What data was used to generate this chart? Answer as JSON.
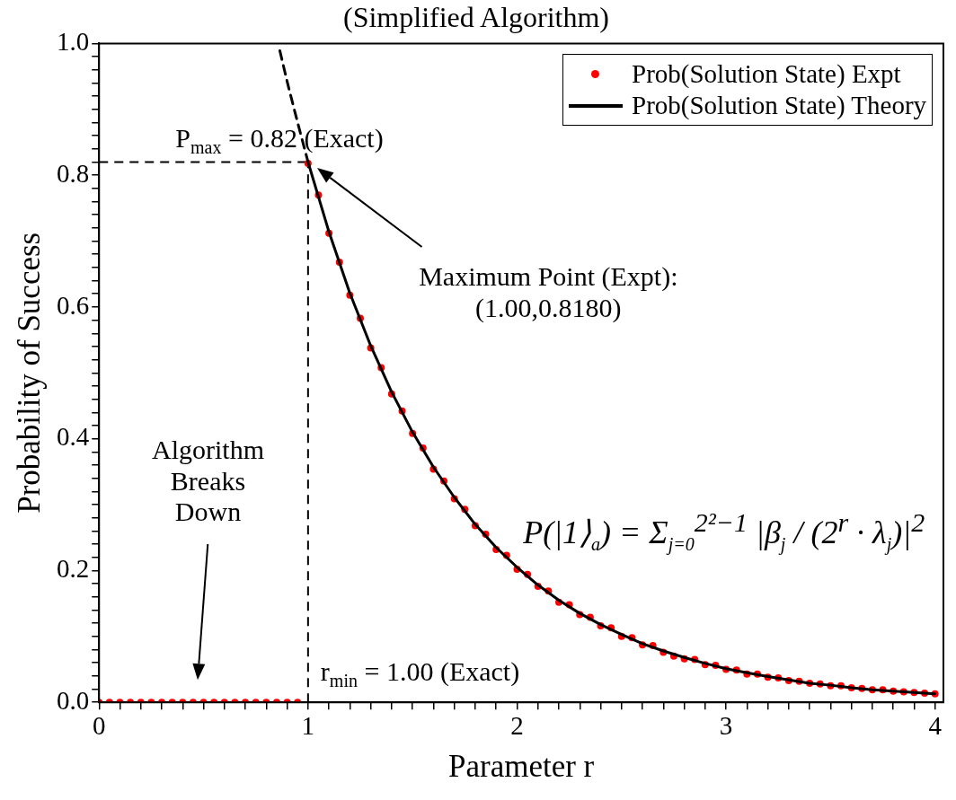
{
  "chart_data": {
    "type": "scatter",
    "title": "(Simplified Algorithm)",
    "xlabel": "Parameter r",
    "ylabel": "Probability of Success",
    "xlim": [
      0,
      4.04
    ],
    "ylim": [
      0,
      1
    ],
    "xticks": [
      0,
      {
        "value": 0.1,
        "label": null
      },
      {
        "value": 0.2,
        "label": null
      },
      {
        "value": 0.3,
        "label": null
      },
      {
        "value": 0.4,
        "label": null
      },
      {
        "value": 0.5,
        "label": null
      },
      {
        "value": 0.6,
        "label": null
      },
      {
        "value": 0.7,
        "label": null
      },
      {
        "value": 0.8,
        "label": null
      },
      {
        "value": 0.9,
        "label": null
      },
      1,
      {
        "value": 1.1,
        "label": null
      },
      {
        "value": 1.2,
        "label": null
      },
      {
        "value": 1.3,
        "label": null
      },
      {
        "value": 1.4,
        "label": null
      },
      {
        "value": 1.5,
        "label": null
      },
      {
        "value": 1.6,
        "label": null
      },
      {
        "value": 1.7,
        "label": null
      },
      {
        "value": 1.8,
        "label": null
      },
      {
        "value": 1.9,
        "label": null
      },
      2,
      {
        "value": 2.1,
        "label": null
      },
      {
        "value": 2.2,
        "label": null
      },
      {
        "value": 2.3,
        "label": null
      },
      {
        "value": 2.4,
        "label": null
      },
      {
        "value": 2.5,
        "label": null
      },
      {
        "value": 2.6,
        "label": null
      },
      {
        "value": 2.7,
        "label": null
      },
      {
        "value": 2.8,
        "label": null
      },
      {
        "value": 2.9,
        "label": null
      },
      3,
      {
        "value": 3.1,
        "label": null
      },
      {
        "value": 3.2,
        "label": null
      },
      {
        "value": 3.3,
        "label": null
      },
      {
        "value": 3.4,
        "label": null
      },
      {
        "value": 3.5,
        "label": null
      },
      {
        "value": 3.6,
        "label": null
      },
      {
        "value": 3.7,
        "label": null
      },
      {
        "value": 3.8,
        "label": null
      },
      {
        "value": 3.9,
        "label": null
      },
      4
    ],
    "yticks": [
      {
        "value": 0,
        "label": "0.0"
      },
      {
        "value": 0.02,
        "label": null
      },
      {
        "value": 0.04,
        "label": null
      },
      {
        "value": 0.06,
        "label": null
      },
      {
        "value": 0.08,
        "label": null
      },
      {
        "value": 0.1,
        "label": null
      },
      {
        "value": 0.12,
        "label": null
      },
      {
        "value": 0.14,
        "label": null
      },
      {
        "value": 0.16,
        "label": null
      },
      {
        "value": 0.18,
        "label": null
      },
      0.2,
      {
        "value": 0.22,
        "label": null
      },
      {
        "value": 0.24,
        "label": null
      },
      {
        "value": 0.26,
        "label": null
      },
      {
        "value": 0.28,
        "label": null
      },
      {
        "value": 0.3,
        "label": null
      },
      {
        "value": 0.32,
        "label": null
      },
      {
        "value": 0.34,
        "label": null
      },
      {
        "value": 0.36,
        "label": null
      },
      {
        "value": 0.38,
        "label": null
      },
      0.4,
      {
        "value": 0.42,
        "label": null
      },
      {
        "value": 0.44,
        "label": null
      },
      {
        "value": 0.46,
        "label": null
      },
      {
        "value": 0.48,
        "label": null
      },
      {
        "value": 0.5,
        "label": null
      },
      {
        "value": 0.52,
        "label": null
      },
      {
        "value": 0.54,
        "label": null
      },
      {
        "value": 0.56,
        "label": null
      },
      {
        "value": 0.58,
        "label": null
      },
      0.6,
      {
        "value": 0.62,
        "label": null
      },
      {
        "value": 0.64,
        "label": null
      },
      {
        "value": 0.66,
        "label": null
      },
      {
        "value": 0.68,
        "label": null
      },
      {
        "value": 0.7,
        "label": null
      },
      {
        "value": 0.72,
        "label": null
      },
      {
        "value": 0.74,
        "label": null
      },
      {
        "value": 0.76,
        "label": null
      },
      {
        "value": 0.78,
        "label": null
      },
      0.8,
      {
        "value": 0.82,
        "label": null
      },
      {
        "value": 0.84,
        "label": null
      },
      {
        "value": 0.86,
        "label": null
      },
      {
        "value": 0.88,
        "label": null
      },
      {
        "value": 0.9,
        "label": null
      },
      {
        "value": 0.92,
        "label": null
      },
      {
        "value": 0.94,
        "label": null
      },
      {
        "value": 0.96,
        "label": null
      },
      {
        "value": 0.98,
        "label": null
      },
      {
        "value": 1,
        "label": "1.0"
      }
    ],
    "legend": "top right",
    "marker": "circle",
    "series": [
      {
        "name": "Prob(Solution State) Expt",
        "color": "#ff0000",
        "x": [
          0,
          0.05,
          0.1,
          0.15,
          0.2,
          0.25,
          0.3,
          0.35,
          0.4,
          0.45,
          0.5,
          0.55,
          0.6,
          0.65,
          0.7,
          0.75,
          0.8,
          0.85,
          0.9,
          0.95,
          1,
          1.05,
          1.1,
          1.15,
          1.2,
          1.25,
          1.3,
          1.35,
          1.4,
          1.45,
          1.5,
          1.55,
          1.6,
          1.65,
          1.7,
          1.75,
          1.8,
          1.85,
          1.9,
          1.95,
          2,
          2.05,
          2.1,
          2.15,
          2.2,
          2.25,
          2.3,
          2.35,
          2.4,
          2.45,
          2.5,
          2.55,
          2.6,
          2.65,
          2.7,
          2.75,
          2.8,
          2.85,
          2.9,
          2.95,
          3,
          3.05,
          3.1,
          3.15,
          3.2,
          3.25,
          3.3,
          3.35,
          3.4,
          3.45,
          3.5,
          3.55,
          3.6,
          3.65,
          3.7,
          3.75,
          3.8,
          3.85,
          3.9,
          3.95,
          4
        ],
        "values": [
          0,
          0,
          0,
          0,
          0,
          0,
          0,
          0,
          0,
          0,
          0,
          0,
          0,
          0,
          0,
          0,
          0,
          0,
          0,
          0,
          0.818,
          0.77,
          0.712,
          0.668,
          0.618,
          0.583,
          0.538,
          0.508,
          0.468,
          0.442,
          0.408,
          0.386,
          0.354,
          0.336,
          0.309,
          0.293,
          0.268,
          0.255,
          0.232,
          0.223,
          0.202,
          0.194,
          0.176,
          0.169,
          0.152,
          0.148,
          0.133,
          0.129,
          0.116,
          0.113,
          0.1,
          0.098,
          0.087,
          0.086,
          0.076,
          0.07,
          0.066,
          0.065,
          0.057,
          0.056,
          0.05,
          0.049,
          0.043,
          0.043,
          0.038,
          0.037,
          0.033,
          0.032,
          0.029,
          0.028,
          0.025,
          0.025,
          0.022,
          0.021,
          0.019,
          0.019,
          0.017,
          0.016,
          0.015,
          0.014,
          0.013
        ]
      },
      {
        "name": "Prob(Solution State) Theory",
        "type": "line",
        "marker": "none",
        "line_style": "solid",
        "color": "#000000",
        "x": [
          1,
          1.1,
          1.2,
          1.3,
          1.4,
          1.5,
          1.6,
          1.7,
          1.8,
          1.9,
          2,
          2.1,
          2.2,
          2.3,
          2.4,
          2.5,
          2.6,
          2.7,
          2.8,
          2.9,
          3,
          3.1,
          3.2,
          3.3,
          3.4,
          3.5,
          3.6,
          3.7,
          3.8,
          3.9,
          4
        ],
        "values": [
          0.82,
          0.714,
          0.621,
          0.541,
          0.471,
          0.41,
          0.357,
          0.311,
          0.27,
          0.235,
          0.205,
          0.178,
          0.155,
          0.135,
          0.118,
          0.103,
          0.089,
          0.078,
          0.068,
          0.059,
          0.051,
          0.045,
          0.039,
          0.034,
          0.029,
          0.026,
          0.022,
          0.019,
          0.017,
          0.015,
          0.013
        ]
      },
      {
        "type": "line",
        "marker": "none",
        "line_style": "dashed",
        "color": "#000000",
        "x": [
          0.865,
          0.9,
          0.95,
          1
        ],
        "values": [
          0.989,
          0.942,
          0.88,
          0.82
        ]
      }
    ],
    "ref_lines": [
      {
        "axis": "y",
        "value": 0.82,
        "label": "P$_{max}$ = 0.82 (Exact)",
        "line_style": "dashed",
        "color": "#000000"
      },
      {
        "axis": "x",
        "value": 1,
        "label": "r$_{min}$ = 1.00 (Exact)",
        "line_style": "dashed",
        "color": "#000000"
      }
    ],
    "annotations": [
      "Maximum Point (Expt):\n(1.00,0.8180)",
      "Algorithm\nBreaks\nDown",
      "P(|1⟩$_{a}$) = Σ$_{j=0}$$^{2²−1}$ |β$_{j}$ / (2$^{r}$ · λ$_{j}$)|$^{2}$"
    ]
  }
}
